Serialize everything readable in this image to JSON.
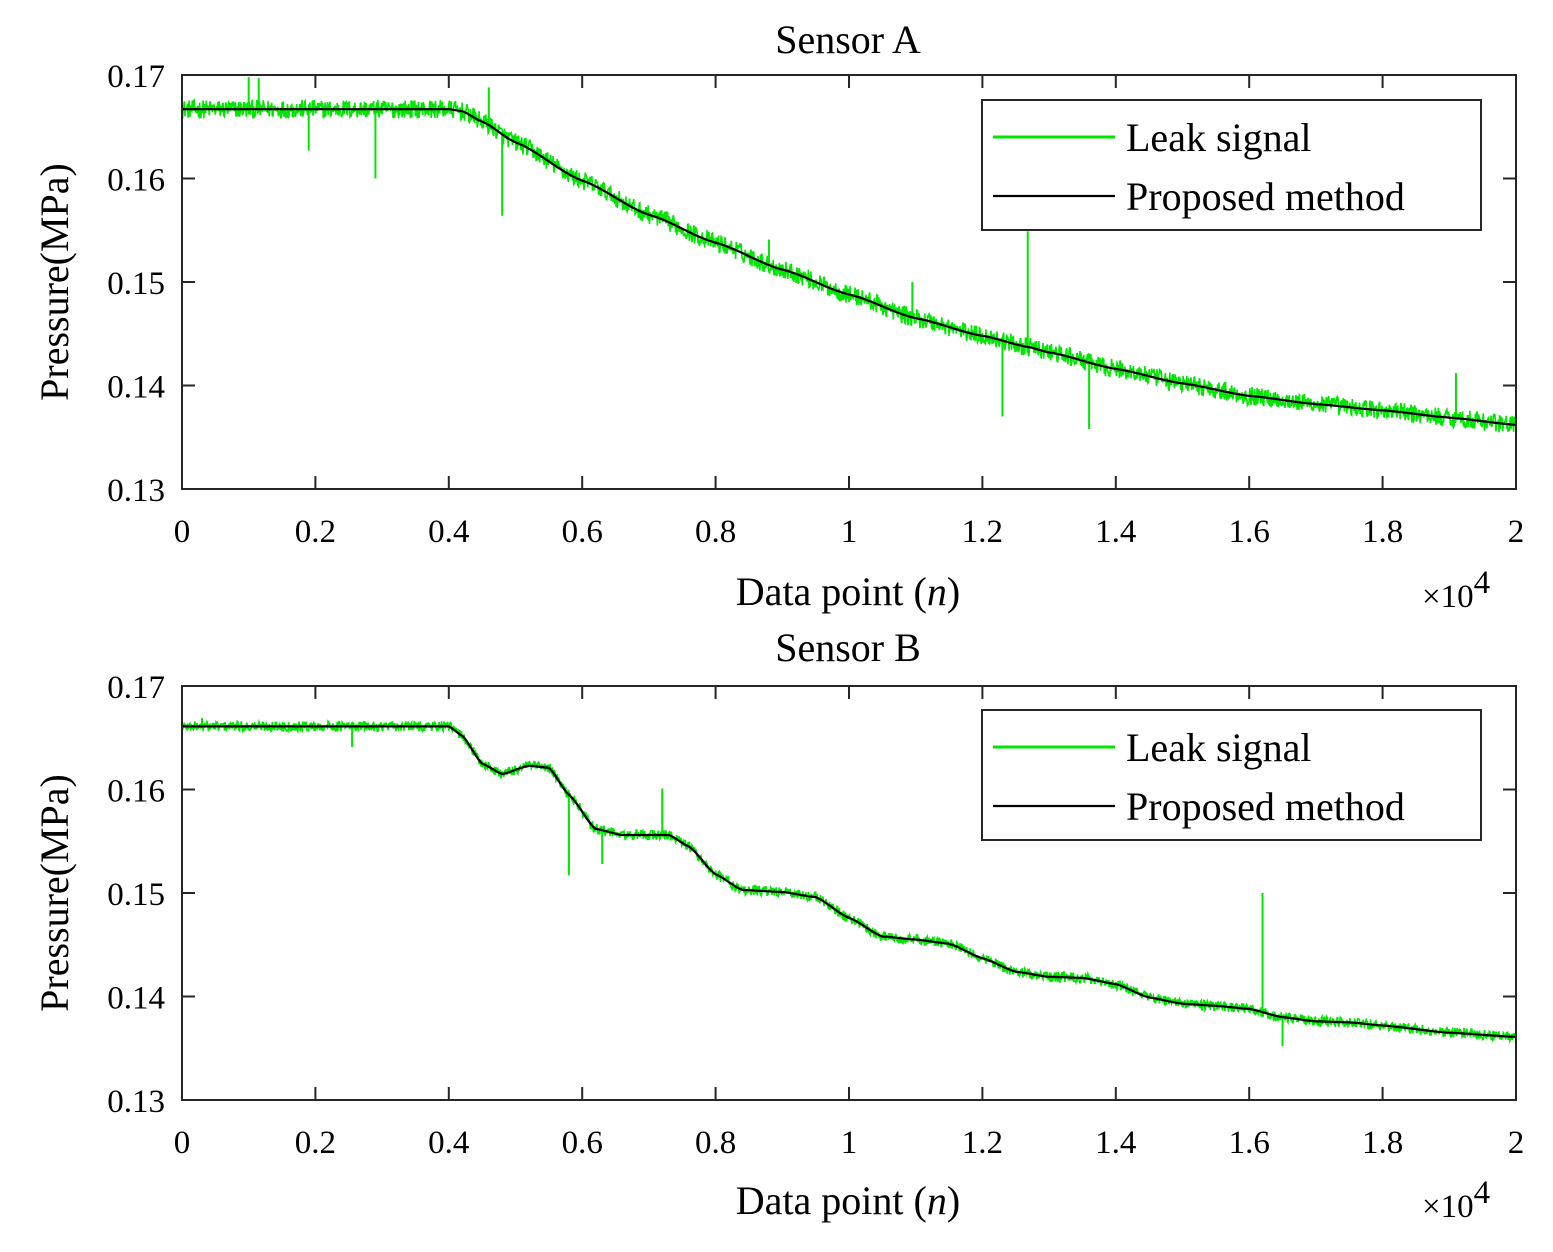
{
  "chart_data": [
    {
      "type": "line",
      "title": "Sensor A",
      "xlabel_main": "Data point (",
      "xlabel_var": "n",
      "xlabel_end": ")",
      "ylabel": "Pressure(MPa)",
      "xlim": [
        0,
        20000
      ],
      "ylim": [
        0.13,
        0.17
      ],
      "x_ticks": [
        0,
        2000,
        4000,
        6000,
        8000,
        10000,
        12000,
        14000,
        16000,
        18000,
        20000
      ],
      "x_tick_labels": [
        "0",
        "0.2",
        "0.4",
        "0.6",
        "0.8",
        "1",
        "1.2",
        "1.4",
        "1.6",
        "1.8",
        "2"
      ],
      "y_ticks": [
        0.13,
        0.14,
        0.15,
        0.16,
        0.17
      ],
      "y_tick_labels": [
        "0.13",
        "0.14",
        "0.15",
        "0.16",
        "0.17"
      ],
      "x_multiplier_base": "×10",
      "x_multiplier_exp": "4",
      "legend": {
        "location": "top-right",
        "entries": [
          "Leak signal",
          "Proposed method"
        ]
      },
      "series": [
        {
          "name": "Proposed method",
          "color": "#000000",
          "x": [
            0,
            1000,
            2000,
            3000,
            4000,
            4200,
            4500,
            5000,
            6000,
            7000,
            8000,
            9000,
            10000,
            11000,
            12000,
            12700,
            13000,
            14000,
            15000,
            16000,
            17000,
            18000,
            19000,
            20000
          ],
          "y": [
            0.1667,
            0.1667,
            0.1667,
            0.1667,
            0.1667,
            0.1665,
            0.1655,
            0.1635,
            0.1598,
            0.1565,
            0.1538,
            0.1512,
            0.1488,
            0.1465,
            0.1448,
            0.1437,
            0.1432,
            0.1416,
            0.1402,
            0.139,
            0.1382,
            0.1376,
            0.1369,
            0.1362
          ]
        },
        {
          "name": "Leak signal",
          "color": "#00e600",
          "noise_band": 0.0009,
          "spikes": [
            {
              "x": 1000,
              "y": 0.1698
            },
            {
              "x": 1150,
              "y": 0.1697
            },
            {
              "x": 1900,
              "y": 0.1627
            },
            {
              "x": 2900,
              "y": 0.16
            },
            {
              "x": 4600,
              "y": 0.1688
            },
            {
              "x": 4800,
              "y": 0.1564
            },
            {
              "x": 8800,
              "y": 0.1541
            },
            {
              "x": 10950,
              "y": 0.15
            },
            {
              "x": 12300,
              "y": 0.137
            },
            {
              "x": 12680,
              "y": 0.1549
            },
            {
              "x": 13600,
              "y": 0.1358
            },
            {
              "x": 19100,
              "y": 0.1412
            }
          ]
        }
      ]
    },
    {
      "type": "line",
      "title": "Sensor B",
      "xlabel_main": "Data point (",
      "xlabel_var": "n",
      "xlabel_end": ")",
      "ylabel": "Pressure(MPa)",
      "xlim": [
        0,
        20000
      ],
      "ylim": [
        0.13,
        0.17
      ],
      "x_ticks": [
        0,
        2000,
        4000,
        6000,
        8000,
        10000,
        12000,
        14000,
        16000,
        18000,
        20000
      ],
      "x_tick_labels": [
        "0",
        "0.2",
        "0.4",
        "0.6",
        "0.8",
        "1",
        "1.2",
        "1.4",
        "1.6",
        "1.8",
        "2"
      ],
      "y_ticks": [
        0.13,
        0.14,
        0.15,
        0.16,
        0.17
      ],
      "y_tick_labels": [
        "0.13",
        "0.14",
        "0.15",
        "0.16",
        "0.17"
      ],
      "x_multiplier_base": "×10",
      "x_multiplier_exp": "4",
      "legend": {
        "location": "top-right",
        "entries": [
          "Leak signal",
          "Proposed method"
        ]
      },
      "series": [
        {
          "name": "Proposed method",
          "color": "#000000",
          "x": [
            0,
            1000,
            2000,
            3000,
            4000,
            4200,
            4500,
            4800,
            5200,
            5500,
            5800,
            6200,
            6600,
            7000,
            7300,
            7600,
            8000,
            8400,
            9000,
            9500,
            10000,
            10500,
            11000,
            11500,
            12000,
            12500,
            13000,
            13500,
            14000,
            14500,
            15000,
            15500,
            16000,
            16500,
            17000,
            17500,
            18000,
            19000,
            20000
          ],
          "y": [
            0.1661,
            0.1661,
            0.1661,
            0.1661,
            0.1661,
            0.1652,
            0.1625,
            0.1615,
            0.1623,
            0.1621,
            0.1595,
            0.1562,
            0.1556,
            0.1556,
            0.1556,
            0.1545,
            0.1518,
            0.1503,
            0.1501,
            0.1496,
            0.1476,
            0.1458,
            0.1455,
            0.1451,
            0.1437,
            0.1424,
            0.1419,
            0.1418,
            0.1412,
            0.1399,
            0.1393,
            0.1391,
            0.1388,
            0.138,
            0.1376,
            0.1375,
            0.1372,
            0.1365,
            0.1361
          ]
        },
        {
          "name": "Leak signal",
          "color": "#00e600",
          "noise_band": 0.0005,
          "spikes": [
            {
              "x": 300,
              "y": 0.1669
            },
            {
              "x": 2550,
              "y": 0.1641
            },
            {
              "x": 5800,
              "y": 0.1517
            },
            {
              "x": 6300,
              "y": 0.1528
            },
            {
              "x": 7200,
              "y": 0.1601
            },
            {
              "x": 16200,
              "y": 0.15
            },
            {
              "x": 16500,
              "y": 0.1352
            }
          ]
        }
      ]
    }
  ]
}
